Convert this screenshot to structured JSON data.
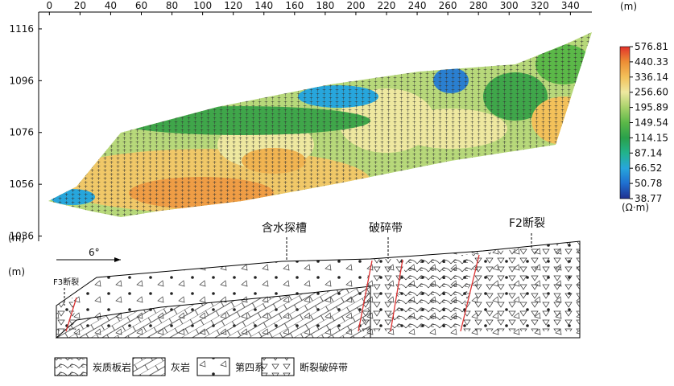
{
  "chart_data": {
    "type": "resistivity-section",
    "x_unit": "(m)",
    "y_unit": "(m)",
    "xlim": [
      -7,
      354
    ],
    "ylim": [
      1034,
      1122.5
    ],
    "xticks": [
      0,
      20,
      40,
      60,
      80,
      100,
      120,
      140,
      160,
      180,
      200,
      220,
      240,
      260,
      280,
      300,
      320,
      340
    ],
    "yticks": [
      1036,
      1056,
      1076,
      1096,
      1116
    ],
    "colorbar": {
      "label": "(Ω·m)",
      "ticks": [
        38.77,
        50.78,
        66.52,
        87.14,
        114.15,
        149.54,
        195.89,
        {
          "value": 256.6,
          "label": "256.60"
        },
        336.14,
        440.33,
        576.81
      ],
      "colors": [
        "#1f2f8f",
        "#1f6fd0",
        "#27a6dc",
        "#22b38c",
        "#2aa04a",
        "#5bb848",
        "#a8d26a",
        "#eee8a0",
        "#f3c15a",
        "#ec8e35",
        "#e2322a"
      ]
    },
    "annotations": {
      "dip": "6°",
      "trench": "含水探槽",
      "fracture_zone": "破碎带",
      "f2": "F2断裂",
      "f3": "F3断裂",
      "depth_unit": "(m)"
    },
    "lithology_legend": [
      "炭质板岩",
      "灰岩",
      "第四系",
      "断裂破碎带"
    ]
  }
}
